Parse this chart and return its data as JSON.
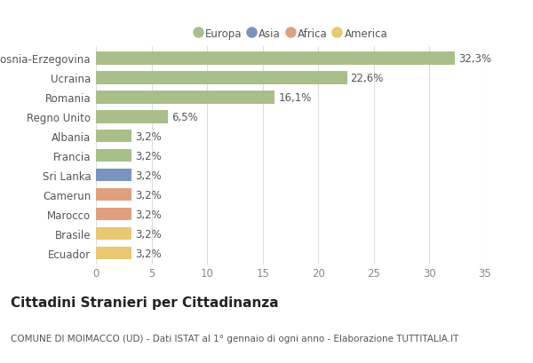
{
  "categories": [
    "Bosnia-Erzegovina",
    "Ucraina",
    "Romania",
    "Regno Unito",
    "Albania",
    "Francia",
    "Sri Lanka",
    "Camerun",
    "Marocco",
    "Brasile",
    "Ecuador"
  ],
  "values": [
    32.3,
    22.6,
    16.1,
    6.5,
    3.2,
    3.2,
    3.2,
    3.2,
    3.2,
    3.2,
    3.2
  ],
  "labels": [
    "32,3%",
    "22,6%",
    "16,1%",
    "6,5%",
    "3,2%",
    "3,2%",
    "3,2%",
    "3,2%",
    "3,2%",
    "3,2%",
    "3,2%"
  ],
  "colors": [
    "#a8bf8a",
    "#a8bf8a",
    "#a8bf8a",
    "#a8bf8a",
    "#a8bf8a",
    "#a8bf8a",
    "#7b93c0",
    "#e0a080",
    "#e0a080",
    "#e8c870",
    "#e8c870"
  ],
  "legend_labels": [
    "Europa",
    "Asia",
    "Africa",
    "America"
  ],
  "legend_colors": [
    "#a8bf8a",
    "#7b93c0",
    "#e0a080",
    "#e8c870"
  ],
  "title": "Cittadini Stranieri per Cittadinanza",
  "subtitle": "COMUNE DI MOIMACCO (UD) - Dati ISTAT al 1° gennaio di ogni anno - Elaborazione TUTTITALIA.IT",
  "xlim": [
    0,
    35
  ],
  "xticks": [
    0,
    5,
    10,
    15,
    20,
    25,
    30,
    35
  ],
  "background_color": "#ffffff",
  "grid_color": "#dddddd",
  "bar_height": 0.65,
  "label_fontsize": 8.5,
  "tick_fontsize": 8.5,
  "title_fontsize": 11,
  "subtitle_fontsize": 7.5
}
